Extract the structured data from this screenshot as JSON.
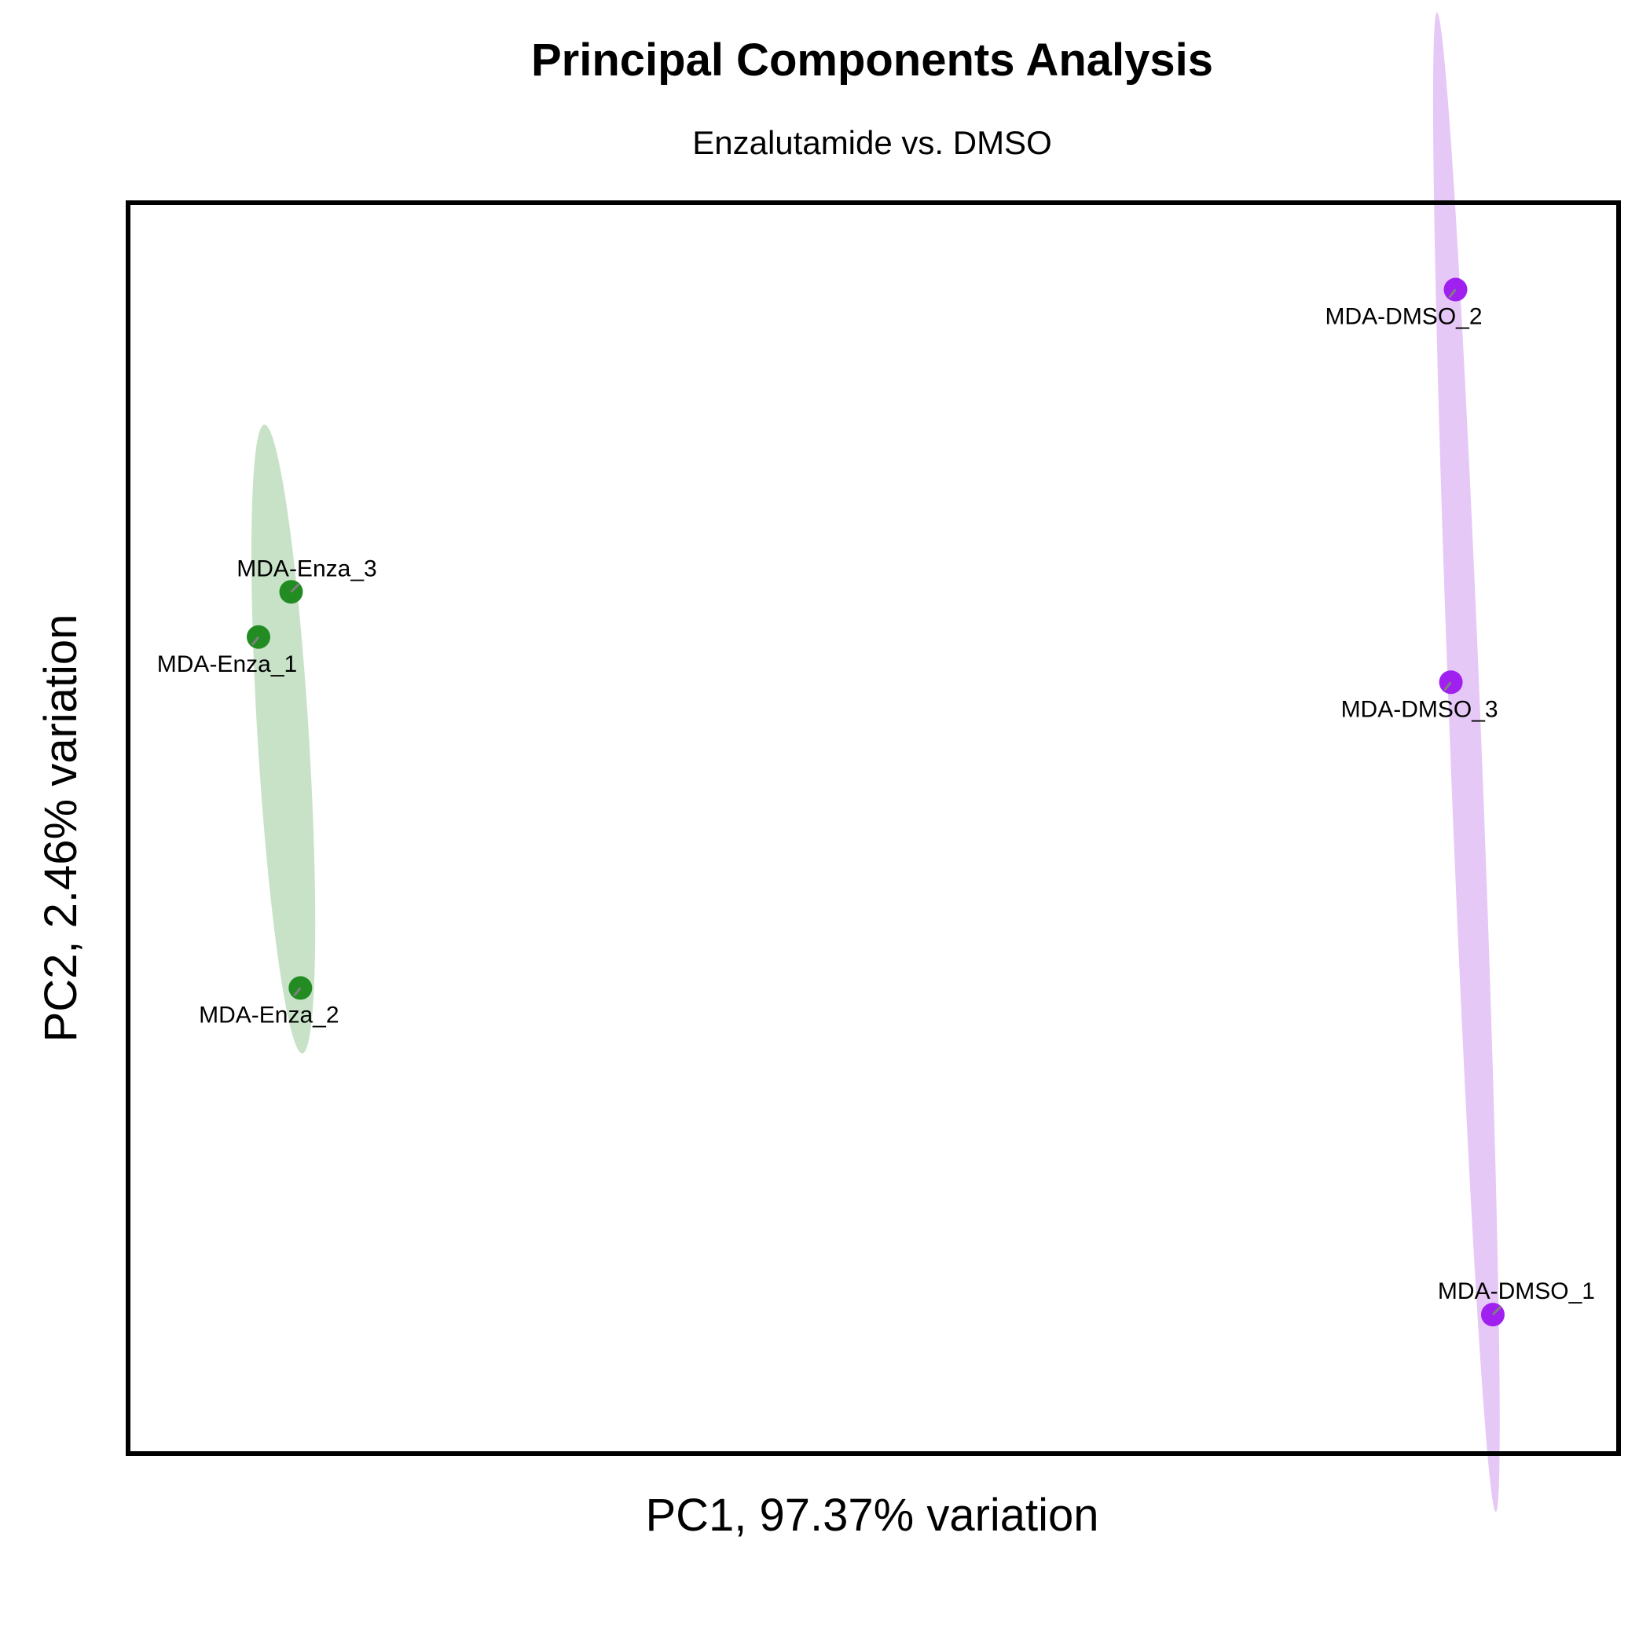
{
  "chart_data": {
    "type": "scatter",
    "title": "Principal Components Analysis",
    "subtitle": "Enzalutamide vs. DMSO",
    "xlabel": "PC1, 97.37% variation",
    "ylabel": "PC2, 2.46% variation",
    "xlim": [
      -16,
      16
    ],
    "ylim": [
      -2.0,
      1.6
    ],
    "grid": false,
    "legend": "none",
    "series": [
      {
        "color": "#228B22",
        "ellipse_color": "#C8E2C8",
        "points": [
          {
            "label": "MDA-Enza_1",
            "x": -13.2,
            "y": 0.35
          },
          {
            "label": "MDA-Enza_2",
            "x": -12.3,
            "y": -0.66
          },
          {
            "label": "MDA-Enza_3",
            "x": -12.5,
            "y": 0.48
          }
        ]
      },
      {
        "color": "#A020F0",
        "ellipse_color": "#E6C8F6",
        "points": [
          {
            "label": "MDA-DMSO_1",
            "x": 13.3,
            "y": -1.6
          },
          {
            "label": "MDA-DMSO_2",
            "x": 12.5,
            "y": 1.35
          },
          {
            "label": "MDA-DMSO_3",
            "x": 12.4,
            "y": 0.22
          }
        ]
      }
    ]
  }
}
